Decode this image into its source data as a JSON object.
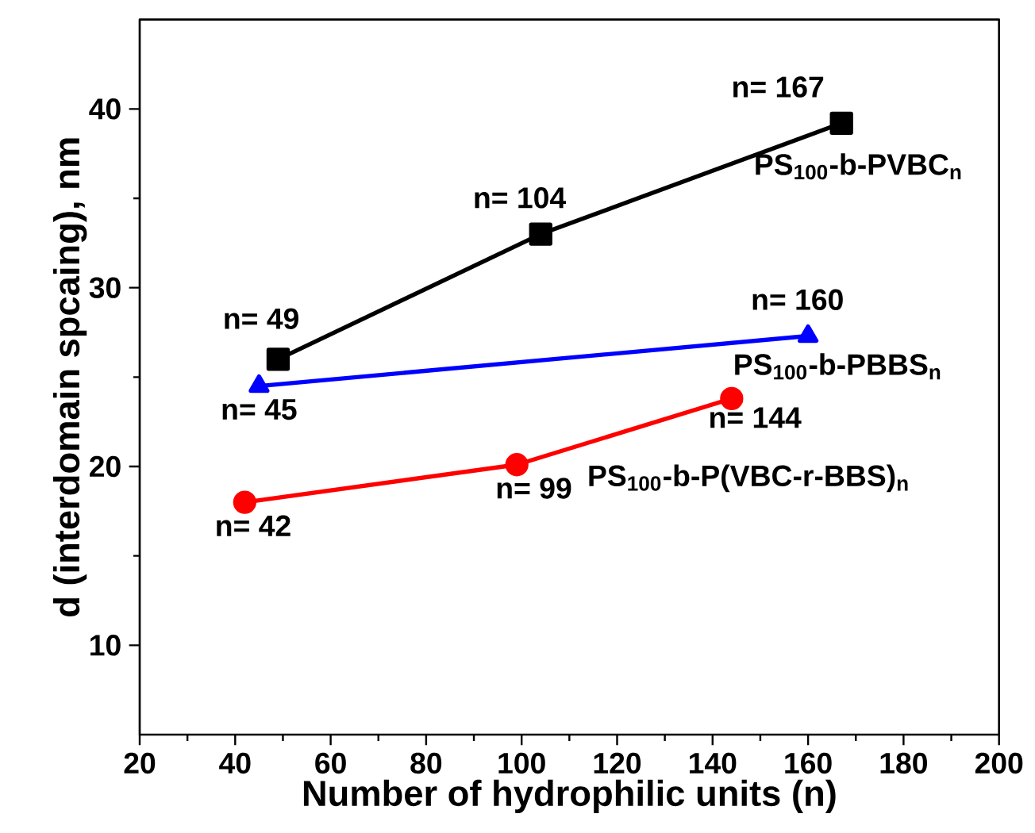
{
  "chart_data": {
    "type": "line",
    "xlabel": "Number of hydrophilic units (n)",
    "ylabel": "d (interdomain spcaing), nm",
    "xlim": [
      20,
      200
    ],
    "xticks": [
      20,
      40,
      60,
      80,
      100,
      120,
      140,
      160,
      180,
      200
    ],
    "ylim": [
      5,
      45
    ],
    "yticks": [
      10,
      20,
      30,
      40
    ],
    "grid": false,
    "legend": false,
    "line_style": "solid",
    "series": [
      {
        "name": "PS$_{100}$-b-PVBC$_{n}$",
        "color": "#000000",
        "marker": "square",
        "x": [
          49,
          104,
          167
        ],
        "values": [
          26,
          33,
          39.2
        ]
      },
      {
        "name": "PS$_{100}$-b-PBBS$_{n}$",
        "color": "#0000ff",
        "marker": "triangle",
        "x": [
          45,
          160
        ],
        "values": [
          24.5,
          27.3
        ]
      },
      {
        "name": "PS$_{100}$-b-P(VBC-r-BBS)$_{n}$",
        "color": "#ff0000",
        "marker": "circle",
        "x": [
          42,
          99,
          144
        ],
        "values": [
          18,
          20.1,
          23.8
        ]
      }
    ],
    "annotations": [
      {
        "text": "n= 49",
        "x": 49,
        "y": 26
      },
      {
        "text": "n= 104",
        "x": 104,
        "y": 33
      },
      {
        "text": "n= 167",
        "x": 167,
        "y": 39.2
      },
      {
        "text": "n= 45",
        "x": 45,
        "y": 24.5
      },
      {
        "text": "n= 160",
        "x": 160,
        "y": 27.3
      },
      {
        "text": "n= 42",
        "x": 42,
        "y": 18
      },
      {
        "text": "n= 99",
        "x": 99,
        "y": 20.1
      },
      {
        "text": "n= 144",
        "x": 144,
        "y": 23.8
      }
    ]
  }
}
